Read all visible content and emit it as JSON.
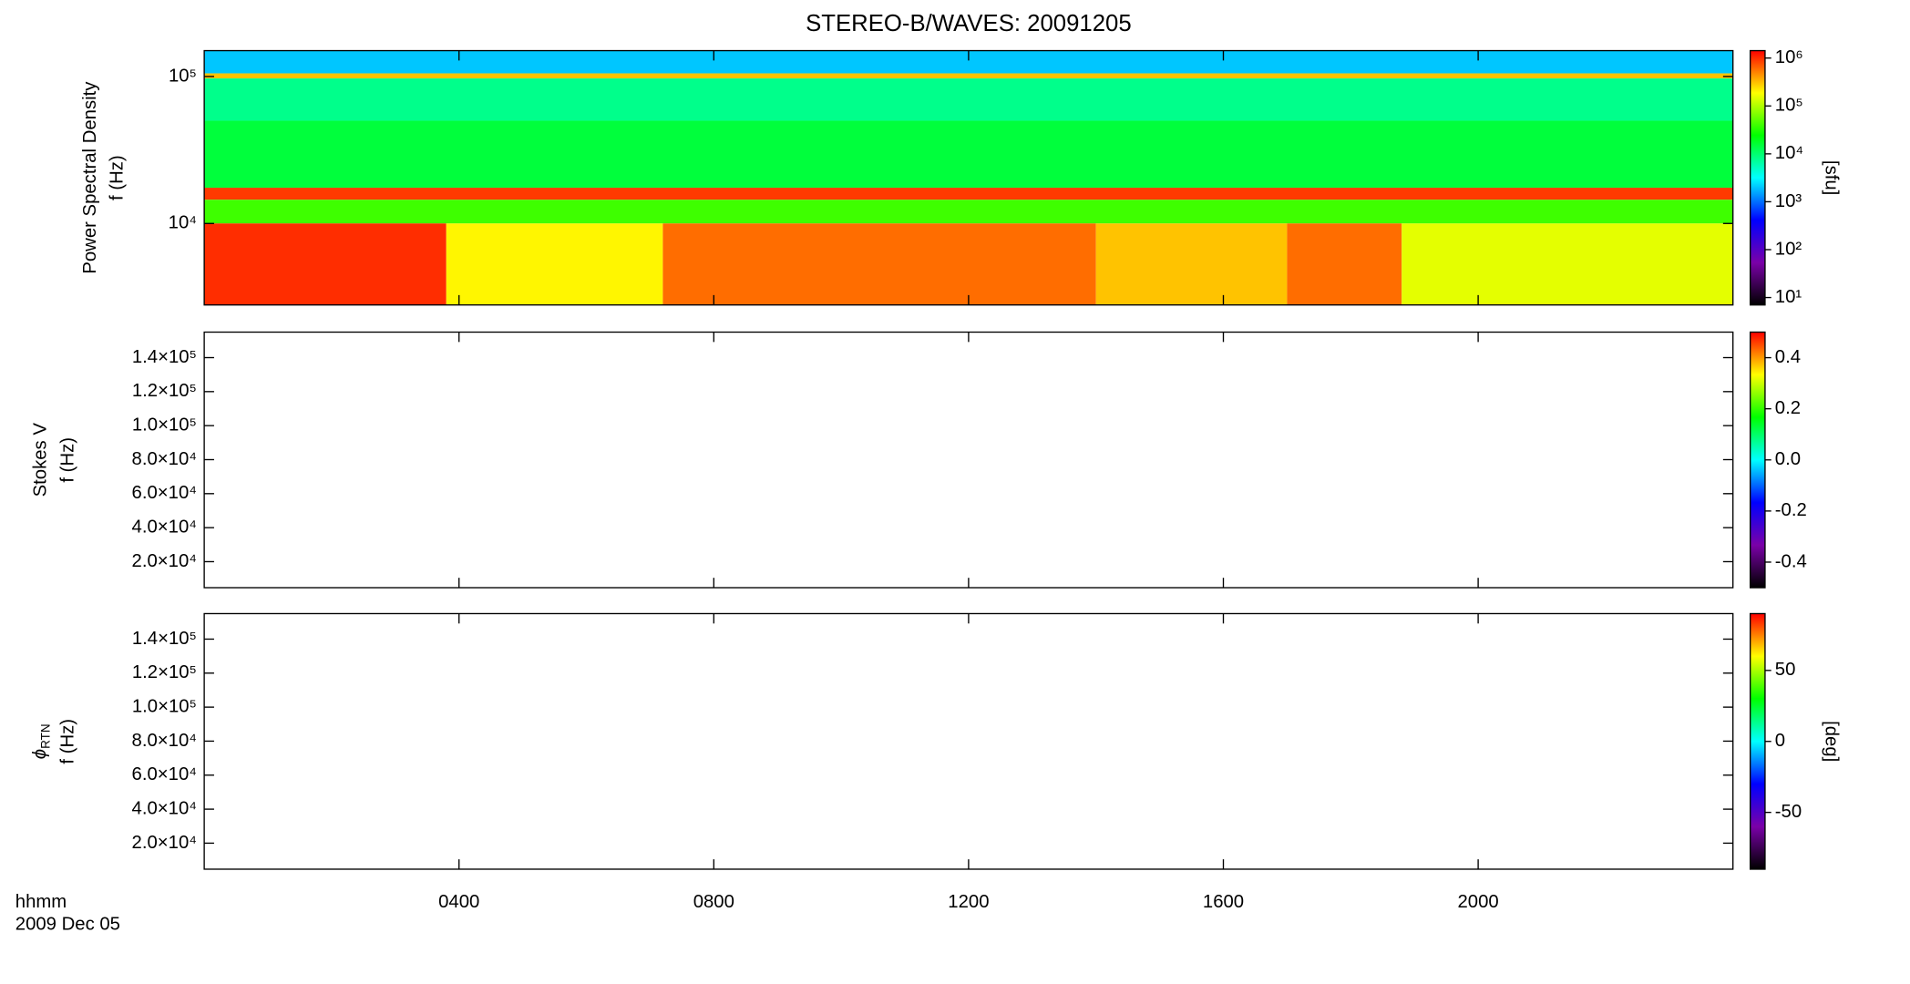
{
  "chart_data": [
    {
      "type": "spectrogram",
      "title": "STEREO-B/WAVES: 20091205",
      "ylabel_top": "Power Spectral Density",
      "ylabel": "f (Hz)",
      "log_y": true,
      "ylim": [
        2790,
        150000
      ],
      "yticks": [
        {
          "value": 10000,
          "label": "10⁴"
        },
        {
          "value": 100000,
          "label": "10⁵"
        }
      ],
      "xlim": [
        0,
        24
      ],
      "colormap": [
        "#000000",
        "#7a00a8",
        "#0000ff",
        "#00ffff",
        "#00ff00",
        "#ffff00",
        "#ff0000"
      ],
      "clim": [
        7,
        1430000
      ],
      "clog": true,
      "cticks": [
        {
          "value": 10,
          "label": "10¹"
        },
        {
          "value": 100,
          "label": "10²"
        },
        {
          "value": 1000,
          "label": "10³"
        },
        {
          "value": 10000,
          "label": "10⁴"
        },
        {
          "value": 100000,
          "label": "10⁵"
        },
        {
          "value": 1000000,
          "label": "10⁶"
        }
      ],
      "clabel": "[sfu]",
      "cells": [
        {
          "t": [
            0,
            24
          ],
          "f": [
            105000,
            150000
          ],
          "sfu": 2000
        },
        {
          "t": [
            0,
            24
          ],
          "f": [
            97000,
            105000
          ],
          "sfu": 300000
        },
        {
          "t": [
            0,
            24
          ],
          "f": [
            50000,
            97000
          ],
          "sfu": 8000
        },
        {
          "t": [
            0,
            24
          ],
          "f": [
            17500,
            50000
          ],
          "sfu": 15000
        },
        {
          "t": [
            0,
            24
          ],
          "f": [
            14500,
            17500
          ],
          "sfu": 900000
        },
        {
          "t": [
            0,
            24
          ],
          "f": [
            10000,
            14500
          ],
          "sfu": 40000
        },
        {
          "t": [
            0,
            3.8
          ],
          "f": [
            2790,
            10000
          ],
          "sfu": 1000000
        },
        {
          "t": [
            3.8,
            7.2
          ],
          "f": [
            2790,
            10000
          ],
          "sfu": 200000
        },
        {
          "t": [
            7.2,
            14
          ],
          "f": [
            2790,
            10000
          ],
          "sfu": 600000
        },
        {
          "t": [
            14,
            17
          ],
          "f": [
            2790,
            10000
          ],
          "sfu": 300000
        },
        {
          "t": [
            17,
            18.8
          ],
          "f": [
            2790,
            10000
          ],
          "sfu": 600000
        },
        {
          "t": [
            18.8,
            24
          ],
          "f": [
            2790,
            10000
          ],
          "sfu": 150000
        }
      ]
    },
    {
      "type": "spectrogram",
      "ylabel_top": "Stokes V",
      "ylabel": "f (Hz)",
      "log_y": false,
      "ylim": [
        4700,
        155000
      ],
      "yticks": [
        {
          "value": 20000,
          "label": "2.0×10⁴"
        },
        {
          "value": 40000,
          "label": "4.0×10⁴"
        },
        {
          "value": 60000,
          "label": "6.0×10⁴"
        },
        {
          "value": 80000,
          "label": "8.0×10⁴"
        },
        {
          "value": 100000,
          "label": "1.0×10⁵"
        },
        {
          "value": 120000,
          "label": "1.2×10⁵"
        },
        {
          "value": 140000,
          "label": "1.4×10⁵"
        }
      ],
      "xlim": [
        0,
        24
      ],
      "colormap": [
        "#000000",
        "#7a00a8",
        "#0000ff",
        "#00ffff",
        "#00ff00",
        "#ffff00",
        "#ff0000"
      ],
      "clim": [
        -0.5,
        0.5
      ],
      "clog": false,
      "cticks": [
        -0.4,
        -0.2,
        {
          "value": 0,
          "label": "0.0"
        },
        0.2,
        0.4
      ],
      "cells": []
    },
    {
      "type": "spectrogram",
      "ylabel_symbol": "ϕ",
      "ylabel_subscript": "RTN",
      "ylabel": "f (Hz)",
      "log_y": false,
      "ylim": [
        4700,
        155000
      ],
      "yticks": [
        {
          "value": 20000,
          "label": "2.0×10⁴"
        },
        {
          "value": 40000,
          "label": "4.0×10⁴"
        },
        {
          "value": 60000,
          "label": "6.0×10⁴"
        },
        {
          "value": 80000,
          "label": "8.0×10⁴"
        },
        {
          "value": 100000,
          "label": "1.0×10⁵"
        },
        {
          "value": 120000,
          "label": "1.2×10⁵"
        },
        {
          "value": 140000,
          "label": "1.4×10⁵"
        }
      ],
      "xlim": [
        0,
        24
      ],
      "xticks": [
        {
          "value": 4,
          "label": "0400"
        },
        {
          "value": 8,
          "label": "0800"
        },
        {
          "value": 12,
          "label": "1200"
        },
        {
          "value": 16,
          "label": "1600"
        },
        {
          "value": 20,
          "label": "2000"
        }
      ],
      "xlabel": "hhmm",
      "date": "2009 Dec 05",
      "colormap": [
        "#000000",
        "#7a00a8",
        "#0000ff",
        "#00ffff",
        "#00ff00",
        "#ffff00",
        "#ff0000"
      ],
      "clim": [
        -90,
        90
      ],
      "clog": false,
      "cticks": [
        -50,
        0,
        50
      ],
      "clabel": "[deg]",
      "cells": []
    }
  ]
}
